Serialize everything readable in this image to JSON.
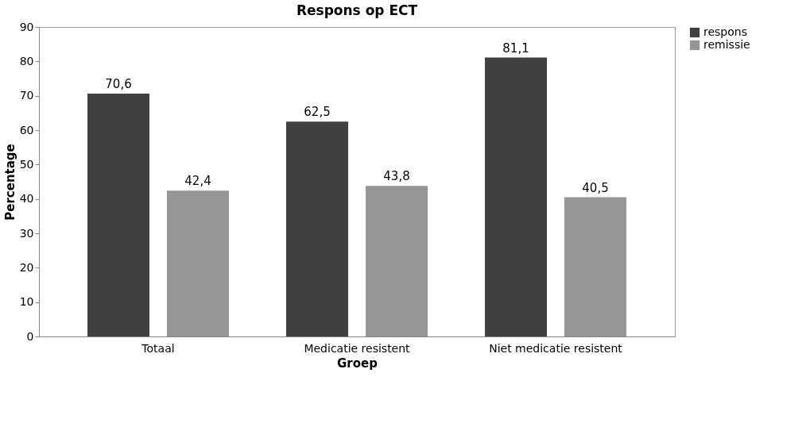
{
  "chart_data": {
    "type": "bar",
    "title": "Respons op ECT",
    "xlabel": "Groep",
    "ylabel": "Percentage",
    "categories": [
      "Totaal",
      "Medicatie resistent",
      "Niet medicatie resistent"
    ],
    "series": [
      {
        "name": "respons",
        "color": "#404040",
        "values": [
          70.6,
          62.5,
          81.1
        ],
        "value_labels": [
          "70,6",
          "62,5",
          "81,1"
        ]
      },
      {
        "name": "remissie",
        "color": "#969696",
        "values": [
          42.4,
          43.8,
          40.5
        ],
        "value_labels": [
          "42,4",
          "43,8",
          "40,5"
        ]
      }
    ],
    "ylim": [
      0,
      90
    ],
    "yticks": [
      0,
      10,
      20,
      30,
      40,
      50,
      60,
      70,
      80,
      90
    ],
    "grid": false,
    "legend": "right"
  }
}
